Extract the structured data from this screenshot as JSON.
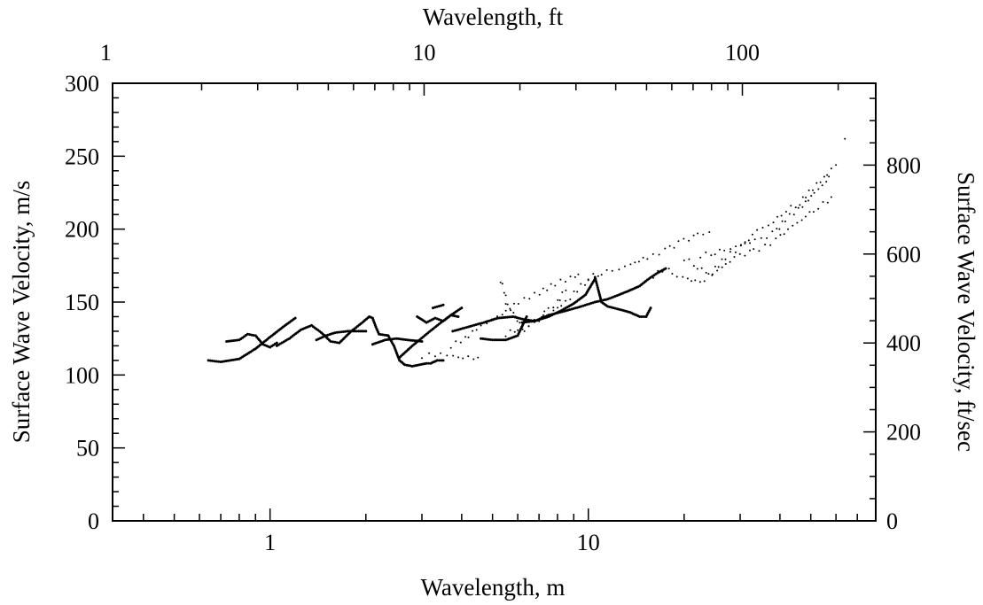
{
  "chart_data": {
    "type": "scatter",
    "x_scale": "log",
    "xlabel_bottom": "Wavelength, m",
    "xlabel_top": "Wavelength, ft",
    "ylabel_left": "Surface Wave Velocity, m/s",
    "ylabel_right": "Surface Wave Velocity, ft/sec",
    "xlim": [
      0.32,
      80
    ],
    "ylim": [
      0,
      300
    ],
    "ylim_right": [
      0,
      984
    ],
    "x_ticks_bottom": [
      {
        "value": 1,
        "label": "1"
      },
      {
        "value": 10,
        "label": "10"
      }
    ],
    "x_ticks_top": [
      {
        "value": 1,
        "label": "1"
      },
      {
        "value": 10,
        "label": "10"
      },
      {
        "value": 100,
        "label": "100"
      }
    ],
    "y_ticks_left": [
      {
        "value": 0,
        "label": "0"
      },
      {
        "value": 50,
        "label": "50"
      },
      {
        "value": 100,
        "label": "100"
      },
      {
        "value": 150,
        "label": "150"
      },
      {
        "value": 200,
        "label": "200"
      },
      {
        "value": 250,
        "label": "250"
      },
      {
        "value": 300,
        "label": "300"
      }
    ],
    "y_ticks_right": [
      {
        "value": 0,
        "label": "0"
      },
      {
        "value": 200,
        "label": "200"
      },
      {
        "value": 400,
        "label": "400"
      },
      {
        "value": 600,
        "label": "600"
      },
      {
        "value": 800,
        "label": "800"
      }
    ],
    "grid": false,
    "legend": false,
    "point_color": "#000000",
    "series": [
      {
        "style": "dense",
        "x": [
          0.64,
          0.7,
          0.8,
          0.9,
          1.0,
          1.1,
          1.2
        ],
        "y": [
          110,
          109,
          111,
          118,
          126,
          133,
          139
        ]
      },
      {
        "style": "dense",
        "x": [
          0.73,
          0.8,
          0.85,
          0.9,
          0.95,
          1.0,
          1.05
        ],
        "y": [
          123,
          124,
          128,
          127,
          121,
          119,
          122
        ]
      },
      {
        "style": "dense",
        "x": [
          1.05,
          1.15,
          1.25,
          1.35,
          1.45,
          1.55,
          1.65,
          1.8,
          1.95,
          2.05,
          2.1,
          2.15,
          2.2,
          2.35
        ],
        "y": [
          120,
          125,
          131,
          134,
          129,
          123,
          122,
          130,
          136,
          140,
          139,
          133,
          128,
          127
        ]
      },
      {
        "style": "dense",
        "x": [
          1.4,
          1.5,
          1.6,
          1.75,
          1.9,
          2.0
        ],
        "y": [
          124,
          127,
          129,
          130,
          130,
          130
        ]
      },
      {
        "style": "dense",
        "x": [
          2.1,
          2.3,
          2.5,
          2.7,
          3.0
        ],
        "y": [
          121,
          124,
          125,
          124,
          123
        ]
      },
      {
        "style": "dense",
        "x": [
          2.35,
          2.45,
          2.55,
          2.65,
          2.8,
          2.95,
          3.1,
          3.2,
          3.35,
          3.5
        ],
        "y": [
          127,
          120,
          110,
          107,
          106,
          107,
          108,
          108,
          110,
          110
        ]
      },
      {
        "style": "dense",
        "x": [
          2.55,
          2.8,
          3.1,
          3.4,
          3.7,
          4.0
        ],
        "y": [
          112,
          120,
          128,
          135,
          141,
          146
        ]
      },
      {
        "style": "dense",
        "x": [
          2.9,
          3.1,
          3.3,
          3.5,
          3.7,
          3.9
        ],
        "y": [
          140,
          136,
          139,
          137,
          141,
          140
        ]
      },
      {
        "style": "dense",
        "x": [
          3.25,
          3.5
        ],
        "y": [
          146,
          148
        ]
      },
      {
        "style": "dense",
        "x": [
          3.75,
          4.2,
          4.7,
          5.2,
          5.8,
          6.3,
          6.8,
          7.5,
          8.5,
          9.5,
          10.5,
          11.5,
          12.5,
          13.5,
          14.5,
          15.5,
          16.5,
          17.5
        ],
        "y": [
          130,
          133,
          136,
          139,
          140,
          138,
          137,
          141,
          144,
          147,
          150,
          152,
          155,
          158,
          161,
          166,
          170,
          173
        ]
      },
      {
        "style": "dense",
        "x": [
          4.6,
          5.0,
          5.5,
          6.0,
          6.4
        ],
        "y": [
          125,
          124,
          124,
          127,
          140
        ]
      },
      {
        "style": "dense",
        "x": [
          6.2,
          6.8,
          7.5,
          8.2,
          9.0,
          9.8,
          10.5
        ],
        "y": [
          136,
          137,
          140,
          144,
          149,
          155,
          166
        ]
      },
      {
        "style": "dense",
        "x": [
          10.5,
          10.7,
          11.0,
          11.5,
          12.5,
          13.5,
          14.5,
          15.2,
          15.7
        ],
        "y": [
          167,
          160,
          150,
          147,
          145,
          143,
          140,
          140,
          146
        ]
      },
      {
        "style": "dotted",
        "x": [
          3.0,
          3.3,
          3.6,
          3.9,
          4.2,
          4.5
        ],
        "y": [
          113,
          114,
          114,
          112,
          112,
          112
        ]
      },
      {
        "style": "dotted",
        "x": [
          3.7,
          4.2,
          4.8,
          5.5,
          6.3,
          7.2,
          8.2,
          9.3
        ],
        "y": [
          120,
          127,
          136,
          144,
          152,
          158,
          164,
          169
        ]
      },
      {
        "style": "dotted",
        "x": [
          5.3,
          5.5,
          5.7,
          5.9,
          6.1,
          6.3
        ],
        "y": [
          165,
          150,
          145,
          140,
          135,
          130
        ]
      },
      {
        "style": "dotted",
        "x": [
          5.5,
          6.0,
          6.5,
          7.0,
          7.5,
          8.0,
          8.5
        ],
        "y": [
          128,
          132,
          134,
          138,
          145,
          150,
          158
        ]
      },
      {
        "style": "dotted",
        "x": [
          6.5,
          7.0,
          7.5,
          8.0,
          8.5,
          9.0,
          9.5,
          10.0
        ],
        "y": [
          135,
          138,
          142,
          146,
          150,
          156,
          161,
          165
        ]
      },
      {
        "style": "dotted",
        "x": [
          10.0,
          11.0,
          12.5,
          14.0,
          16.0,
          18.0,
          20.0,
          22.0,
          24.0
        ],
        "y": [
          167,
          170,
          173,
          177,
          182,
          187,
          192,
          196,
          198
        ]
      },
      {
        "style": "dotted",
        "x": [
          16.0,
          17.5,
          19.0,
          20.5,
          22.5,
          25.0,
          28.0,
          31.0,
          34.0,
          38.0,
          42.0,
          46.0,
          51.0,
          56.0,
          60.0
        ],
        "y": [
          168,
          174,
          168,
          166,
          163,
          173,
          183,
          190,
          199,
          205,
          213,
          218,
          228,
          238,
          244
        ]
      },
      {
        "style": "dotted",
        "x": [
          20.0,
          22.0,
          24.5,
          27.0,
          30.0,
          33.0,
          36.0,
          40.0,
          44.0,
          48.0,
          53.0,
          58.0
        ],
        "y": [
          180,
          174,
          169,
          176,
          182,
          185,
          188,
          195,
          202,
          209,
          215,
          222
        ]
      },
      {
        "style": "dotted",
        "x": [
          22.5,
          25.0,
          28.0,
          31.0,
          35.0,
          39.0,
          43.0,
          48.0,
          53.0,
          57.0
        ],
        "y": [
          182,
          184,
          187,
          190,
          193,
          199,
          209,
          218,
          227,
          236
        ]
      },
      {
        "style": "dotted",
        "x": [
          64.0
        ],
        "y": [
          262
        ]
      }
    ]
  }
}
